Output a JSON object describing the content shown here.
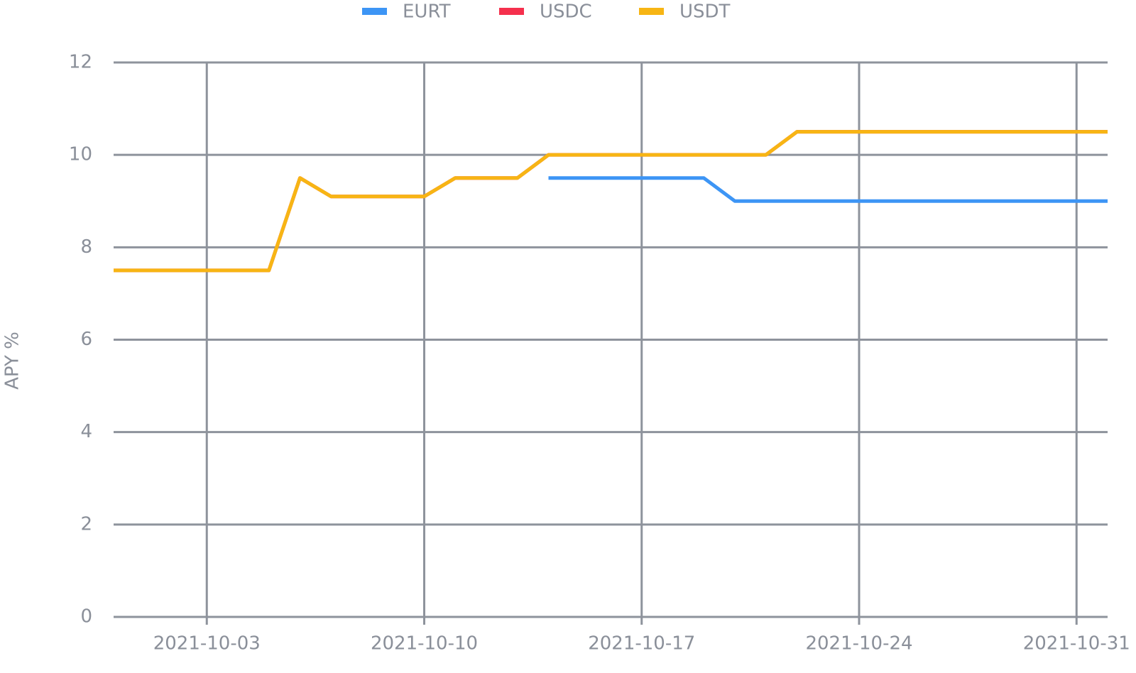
{
  "chart_data": {
    "type": "line",
    "y_label": "APY %",
    "x": [
      "2021-09-30",
      "2021-10-01",
      "2021-10-02",
      "2021-10-03",
      "2021-10-04",
      "2021-10-05",
      "2021-10-06",
      "2021-10-07",
      "2021-10-08",
      "2021-10-09",
      "2021-10-10",
      "2021-10-11",
      "2021-10-12",
      "2021-10-13",
      "2021-10-14",
      "2021-10-15",
      "2021-10-16",
      "2021-10-17",
      "2021-10-18",
      "2021-10-19",
      "2021-10-20",
      "2021-10-21",
      "2021-10-22",
      "2021-10-23",
      "2021-10-24",
      "2021-10-25",
      "2021-10-26",
      "2021-10-27",
      "2021-10-28",
      "2021-10-29",
      "2021-10-30",
      "2021-10-31",
      "2021-11-01"
    ],
    "series": [
      {
        "name": "EURT",
        "color": "#3d95f5",
        "values": [
          null,
          null,
          null,
          null,
          null,
          null,
          null,
          null,
          null,
          null,
          null,
          null,
          null,
          null,
          9.5,
          9.5,
          9.5,
          9.5,
          9.5,
          9.5,
          9,
          9,
          9,
          9,
          9,
          9,
          9,
          9,
          9,
          9,
          9,
          9,
          9
        ]
      },
      {
        "name": "USDC",
        "color": "#f5304d",
        "values": [
          7.5,
          7.5,
          7.5,
          7.5,
          7.5,
          7.5,
          9.5,
          9.1,
          9.1,
          9.1,
          9.1,
          9.5,
          9.5,
          9.5,
          10,
          10,
          10,
          10,
          10,
          10,
          10,
          10,
          10.5,
          10.5,
          10.5,
          10.5,
          10.5,
          10.5,
          10.5,
          10.5,
          10.5,
          10.5,
          10.5
        ]
      },
      {
        "name": "USDT",
        "color": "#f7b514",
        "values": [
          7.5,
          7.5,
          7.5,
          7.5,
          7.5,
          7.5,
          9.5,
          9.1,
          9.1,
          9.1,
          9.1,
          9.5,
          9.5,
          9.5,
          10,
          10,
          10,
          10,
          10,
          10,
          10,
          10,
          10.5,
          10.5,
          10.5,
          10.5,
          10.5,
          10.5,
          10.5,
          10.5,
          10.5,
          10.5,
          10.5
        ]
      }
    ],
    "xlim": [
      "2021-09-30",
      "2021-11-01"
    ],
    "xticks": [
      "2021-10-03",
      "2021-10-10",
      "2021-10-17",
      "2021-10-24",
      "2021-10-31"
    ],
    "ylim": [
      0,
      12
    ],
    "yticks": [
      0,
      2,
      4,
      6,
      8,
      10,
      12
    ],
    "grid": true,
    "legend": "top"
  }
}
